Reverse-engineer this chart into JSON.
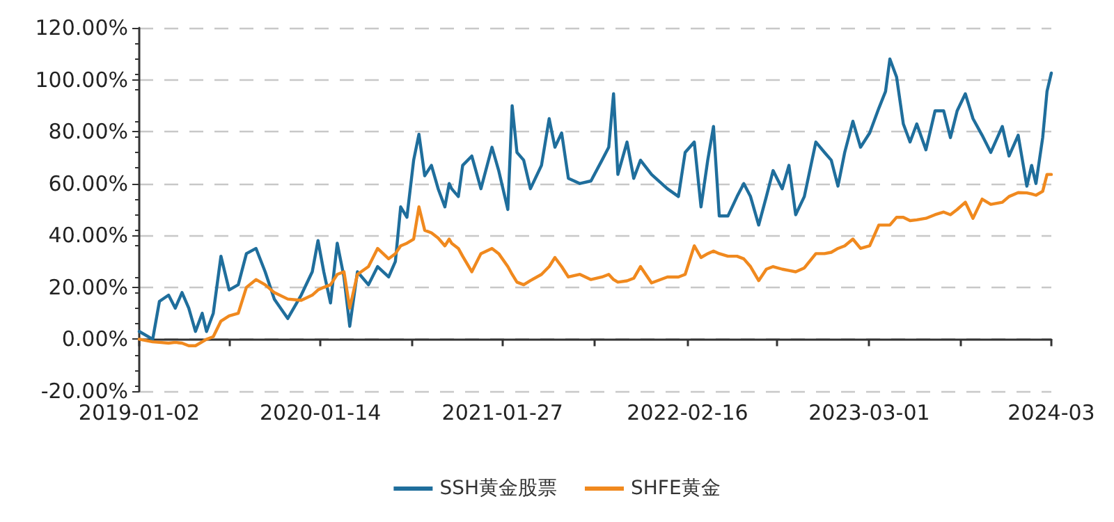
{
  "chart_data": {
    "type": "line",
    "x": [
      "2019-01-02",
      "2019-01-30",
      "2019-02-13",
      "2019-03-04",
      "2019-03-18",
      "2019-04-01",
      "2019-04-15",
      "2019-04-29",
      "2019-05-13",
      "2019-05-22",
      "2019-06-05",
      "2019-06-21",
      "2019-07-08",
      "2019-07-27",
      "2019-08-13",
      "2019-09-02",
      "2019-09-21",
      "2019-10-10",
      "2019-11-07",
      "2019-12-05",
      "2019-12-28",
      "2020-01-09",
      "2020-01-21",
      "2020-02-04",
      "2020-02-18",
      "2020-03-03",
      "2020-03-15",
      "2020-03-31",
      "2020-04-23",
      "2020-05-12",
      "2020-06-04",
      "2020-06-18",
      "2020-06-29",
      "2020-07-12",
      "2020-07-26",
      "2020-08-06",
      "2020-08-18",
      "2020-09-01",
      "2020-09-15",
      "2020-09-29",
      "2020-10-08",
      "2020-10-13",
      "2020-10-27",
      "2020-11-05",
      "2020-11-24",
      "2020-12-13",
      "2021-01-05",
      "2021-01-19",
      "2021-02-07",
      "2021-02-16",
      "2021-02-26",
      "2021-03-12",
      "2021-03-26",
      "2021-04-18",
      "2021-05-04",
      "2021-05-16",
      "2021-05-30",
      "2021-06-13",
      "2021-07-07",
      "2021-07-30",
      "2021-08-22",
      "2021-09-05",
      "2021-09-15",
      "2021-09-24",
      "2021-10-13",
      "2021-10-27",
      "2021-11-10",
      "2021-12-03",
      "2022-01-05",
      "2022-01-28",
      "2022-02-11",
      "2022-03-02",
      "2022-03-16",
      "2022-03-30",
      "2022-04-11",
      "2022-04-23",
      "2022-05-11",
      "2022-05-30",
      "2022-06-13",
      "2022-06-27",
      "2022-07-14",
      "2022-07-30",
      "2022-08-13",
      "2022-09-01",
      "2022-09-15",
      "2022-09-29",
      "2022-10-17",
      "2022-11-10",
      "2022-11-28",
      "2022-12-12",
      "2022-12-26",
      "2023-01-09",
      "2023-01-26",
      "2023-02-11",
      "2023-03-02",
      "2023-03-21",
      "2023-04-04",
      "2023-04-13",
      "2023-04-27",
      "2023-05-11",
      "2023-05-25",
      "2023-06-08",
      "2023-06-27",
      "2023-07-16",
      "2023-08-03",
      "2023-08-17",
      "2023-08-31",
      "2023-09-17",
      "2023-10-03",
      "2023-10-22",
      "2023-11-09",
      "2023-12-03",
      "2023-12-17",
      "2024-01-05",
      "2024-01-23",
      "2024-02-02",
      "2024-02-11",
      "2024-02-25",
      "2024-03-05",
      "2024-03-14"
    ],
    "series": [
      {
        "name": "SSH黄金股票",
        "color": "#1f6e9c",
        "values": [
          3,
          0,
          14.6,
          17,
          12,
          18,
          12,
          3,
          10,
          3,
          10,
          32,
          19,
          21,
          33,
          35,
          26,
          15.5,
          8,
          17,
          26,
          38,
          26,
          14,
          37,
          24,
          5,
          26,
          21,
          28,
          24,
          30,
          51,
          47,
          69,
          79,
          63,
          67,
          58,
          51,
          60,
          58,
          55,
          67,
          70.6,
          58,
          74,
          65,
          50,
          90,
          72,
          69,
          58,
          67,
          85,
          74,
          79.5,
          62,
          60,
          61,
          69,
          74,
          94.6,
          63.5,
          76,
          62,
          69,
          63.5,
          58,
          55,
          72,
          76,
          51,
          69,
          82,
          47.5,
          47.5,
          55,
          60,
          55,
          44,
          55,
          65,
          58,
          67,
          48,
          55,
          76,
          72,
          69,
          59,
          72,
          84,
          74,
          79.5,
          89,
          95.5,
          108,
          101,
          83,
          76,
          83,
          73,
          88,
          88,
          77.7,
          88,
          94.6,
          85,
          78.6,
          72,
          82,
          70.6,
          78.6,
          59,
          67,
          60,
          77.7,
          95.5,
          102.6
        ]
      },
      {
        "name": "SHFE黄金",
        "color": "#f0891e",
        "values": [
          0,
          -1,
          -1.2,
          -1.5,
          -1.2,
          -1.5,
          -2.5,
          -2.5,
          -1,
          0,
          1,
          7,
          9,
          10,
          20,
          23,
          21,
          18,
          15.5,
          15,
          17,
          19,
          20,
          21,
          25,
          26,
          12,
          25,
          28,
          35,
          31,
          33,
          36,
          37,
          38.6,
          51,
          42,
          41,
          39,
          36,
          38.6,
          37,
          35,
          32,
          26,
          33,
          35,
          33,
          28,
          25,
          22,
          21,
          22.6,
          25,
          28,
          31.5,
          28,
          24,
          25,
          23,
          24,
          25,
          23,
          22,
          22.5,
          23.5,
          28,
          21.7,
          24,
          24,
          25,
          36,
          31.5,
          33,
          34,
          33,
          32,
          32,
          31,
          28,
          22.6,
          27,
          28,
          27,
          26.5,
          26,
          27.5,
          33,
          33,
          33.5,
          35,
          36,
          38.6,
          35,
          36,
          44,
          44,
          44,
          47,
          47,
          45.7,
          46,
          46.6,
          48,
          49,
          48,
          50,
          52.8,
          46.6,
          54,
          52,
          52.8,
          55,
          56.5,
          56.4,
          56,
          55.5,
          57,
          63.5,
          63.5
        ]
      }
    ],
    "xlim": [
      "2019-01-02",
      "2024-03-14"
    ],
    "xticks": [
      {
        "value": "2019-01-02",
        "label": "2019-01-02"
      },
      {
        "value": "2019-07-10",
        "label": null
      },
      {
        "value": "2020-01-14",
        "label": "2020-01-14"
      },
      {
        "value": "2020-07-22",
        "label": null
      },
      {
        "value": "2021-01-27",
        "label": "2021-01-27"
      },
      {
        "value": "2021-08-07",
        "label": null
      },
      {
        "value": "2022-02-16",
        "label": "2022-02-16"
      },
      {
        "value": "2022-08-21",
        "label": null
      },
      {
        "value": "2023-03-01",
        "label": "2023-03-01"
      },
      {
        "value": "2023-09-07",
        "label": null
      },
      {
        "value": "2024-03-14",
        "label": "2024-03"
      }
    ],
    "ylim": [
      -20,
      120
    ],
    "yticks": [
      {
        "value": -20,
        "label": "-20.00%"
      },
      {
        "value": 0,
        "label": "0.00%"
      },
      {
        "value": 20,
        "label": "20.00%"
      },
      {
        "value": 40,
        "label": "40.00%"
      },
      {
        "value": 60,
        "label": "60.00%"
      },
      {
        "value": 80,
        "label": "80.00%"
      },
      {
        "value": 100,
        "label": "100.00%"
      },
      {
        "value": 120,
        "label": "120.00%"
      }
    ],
    "grid": "y",
    "legend": "bottom",
    "marker": "none",
    "line_style": "solid"
  }
}
